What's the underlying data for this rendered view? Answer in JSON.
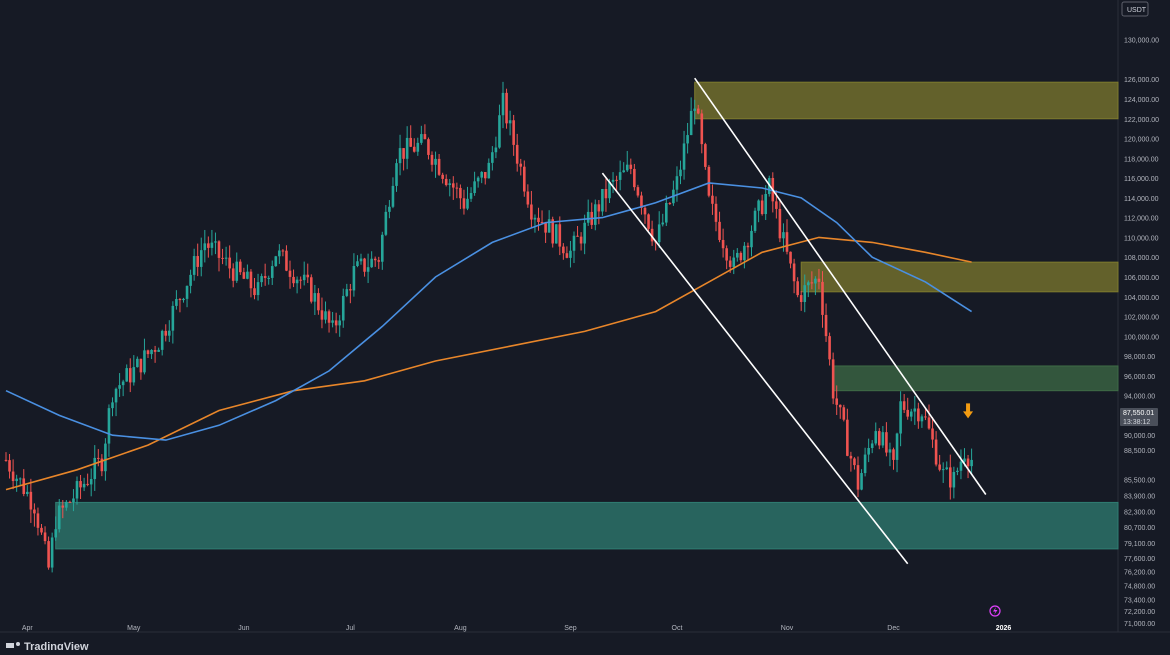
{
  "header": {
    "currency": "USDT"
  },
  "footer": {
    "brand": "TradingView",
    "year_label": "2026"
  },
  "colors": {
    "background": "#161a25",
    "up_candle": "#26a69a",
    "down_candle": "#ef5350",
    "ma_fast": "#4a90e2",
    "ma_slow": "#e8862a",
    "resistance_zone": "#7d7a2e",
    "green_zone": "#3e6b46",
    "support_zone": "#2f7d72",
    "trendline": "#ffffff",
    "arrow": "#f39c12",
    "price_label_bg": "#4a4f5a"
  },
  "icons": {
    "arrow": "down-arrow-icon",
    "logo": "tradingview-logo-icon",
    "replay": "lightning-icon"
  },
  "chart_data": {
    "type": "candlestick",
    "ylim": [
      70500,
      133000
    ],
    "y_ticks": [
      {
        "value": 130000,
        "label": "130,000.00"
      },
      {
        "value": 126000,
        "label": "126,000.00"
      },
      {
        "value": 124000,
        "label": "124,000.00"
      },
      {
        "value": 122000,
        "label": "122,000.00"
      },
      {
        "value": 120000,
        "label": "120,000.00"
      },
      {
        "value": 118000,
        "label": "118,000.00"
      },
      {
        "value": 116000,
        "label": "116,000.00"
      },
      {
        "value": 114000,
        "label": "114,000.00"
      },
      {
        "value": 112000,
        "label": "112,000.00"
      },
      {
        "value": 110000,
        "label": "110,000.00"
      },
      {
        "value": 108000,
        "label": "108,000.00"
      },
      {
        "value": 106000,
        "label": "106,000.00"
      },
      {
        "value": 104000,
        "label": "104,000.00"
      },
      {
        "value": 102000,
        "label": "102,000.00"
      },
      {
        "value": 100000,
        "label": "100,000.00"
      },
      {
        "value": 98000,
        "label": "98,000.00"
      },
      {
        "value": 96000,
        "label": "96,000.00"
      },
      {
        "value": 94000,
        "label": "94,000.00"
      },
      {
        "value": 92000,
        "label": "92,000.00"
      },
      {
        "value": 90000,
        "label": "90,000.00"
      },
      {
        "value": 88500,
        "label": "88,500.00"
      },
      {
        "value": 85500,
        "label": "85,500.00"
      },
      {
        "value": 83900,
        "label": "83,900.00"
      },
      {
        "value": 82300,
        "label": "82,300.00"
      },
      {
        "value": 80700,
        "label": "80,700.00"
      },
      {
        "value": 79100,
        "label": "79,100.00"
      },
      {
        "value": 77600,
        "label": "77,600.00"
      },
      {
        "value": 76200,
        "label": "76,200.00"
      },
      {
        "value": 74800,
        "label": "74,800.00"
      },
      {
        "value": 73400,
        "label": "73,400.00"
      },
      {
        "value": 72200,
        "label": "72,200.00"
      },
      {
        "value": 71000,
        "label": "71,000.00"
      }
    ],
    "x_labels": [
      "Apr",
      "May",
      "Jun",
      "Jul",
      "Aug",
      "Sep",
      "Oct",
      "Nov",
      "Dec",
      "2026"
    ],
    "x_label_dates": [
      "2025-04-01",
      "2025-05-01",
      "2025-06-01",
      "2025-07-01",
      "2025-08-01",
      "2025-09-01",
      "2025-10-01",
      "2025-11-01",
      "2025-12-01",
      "2026-01-01"
    ],
    "current_price": {
      "value": 87550.01,
      "label": "87,550.01",
      "countdown": "13:38:12"
    },
    "key_points": [
      {
        "date": "2025-03-26",
        "close": 87500
      },
      {
        "date": "2025-04-03",
        "close": 83000
      },
      {
        "date": "2025-04-07",
        "close": 76500
      },
      {
        "date": "2025-04-09",
        "close": 81500
      },
      {
        "date": "2025-04-22",
        "close": 87500
      },
      {
        "date": "2025-04-25",
        "close": 94500
      },
      {
        "date": "2025-05-01",
        "close": 96500
      },
      {
        "date": "2025-05-08",
        "close": 99500
      },
      {
        "date": "2025-05-14",
        "close": 104000
      },
      {
        "date": "2025-05-21",
        "close": 109500
      },
      {
        "date": "2025-05-28",
        "close": 107000
      },
      {
        "date": "2025-06-05",
        "close": 104500
      },
      {
        "date": "2025-06-10",
        "close": 108500
      },
      {
        "date": "2025-06-20",
        "close": 104500
      },
      {
        "date": "2025-06-26",
        "close": 100500
      },
      {
        "date": "2025-07-02",
        "close": 106500
      },
      {
        "date": "2025-07-09",
        "close": 108000
      },
      {
        "date": "2025-07-14",
        "close": 118500
      },
      {
        "date": "2025-07-22",
        "close": 119500
      },
      {
        "date": "2025-08-02",
        "close": 113500
      },
      {
        "date": "2025-08-09",
        "close": 117000
      },
      {
        "date": "2025-08-13",
        "close": 123500
      },
      {
        "date": "2025-08-21",
        "close": 113000
      },
      {
        "date": "2025-09-01",
        "close": 108500
      },
      {
        "date": "2025-09-12",
        "close": 115000
      },
      {
        "date": "2025-09-18",
        "close": 117000
      },
      {
        "date": "2025-09-25",
        "close": 109500
      },
      {
        "date": "2025-10-01",
        "close": 115500
      },
      {
        "date": "2025-10-06",
        "close": 124000
      },
      {
        "date": "2025-10-10",
        "close": 113500
      },
      {
        "date": "2025-10-17",
        "close": 107000
      },
      {
        "date": "2025-10-27",
        "close": 115000
      },
      {
        "date": "2025-11-04",
        "close": 104000
      },
      {
        "date": "2025-11-10",
        "close": 106000
      },
      {
        "date": "2025-11-14",
        "close": 94500
      },
      {
        "date": "2025-11-21",
        "close": 85000
      },
      {
        "date": "2025-11-26",
        "close": 91000
      },
      {
        "date": "2025-12-01",
        "close": 86500
      },
      {
        "date": "2025-12-03",
        "close": 93000
      },
      {
        "date": "2025-12-09",
        "close": 92500
      },
      {
        "date": "2025-12-15",
        "close": 86000
      },
      {
        "date": "2025-12-18",
        "close": 85500
      },
      {
        "date": "2025-12-21",
        "close": 88500
      },
      {
        "date": "2025-12-23",
        "close": 87550
      }
    ],
    "ma_fast": [
      {
        "date": "2025-03-26",
        "value": 94500
      },
      {
        "date": "2025-04-10",
        "value": 92000
      },
      {
        "date": "2025-04-25",
        "value": 90000
      },
      {
        "date": "2025-05-10",
        "value": 89500
      },
      {
        "date": "2025-05-25",
        "value": 91000
      },
      {
        "date": "2025-06-10",
        "value": 93500
      },
      {
        "date": "2025-06-25",
        "value": 96500
      },
      {
        "date": "2025-07-10",
        "value": 101000
      },
      {
        "date": "2025-07-25",
        "value": 106000
      },
      {
        "date": "2025-08-10",
        "value": 109500
      },
      {
        "date": "2025-08-25",
        "value": 111500
      },
      {
        "date": "2025-09-10",
        "value": 112000
      },
      {
        "date": "2025-09-25",
        "value": 113500
      },
      {
        "date": "2025-10-10",
        "value": 115500
      },
      {
        "date": "2025-10-25",
        "value": 115000
      },
      {
        "date": "2025-11-05",
        "value": 114000
      },
      {
        "date": "2025-11-15",
        "value": 111500
      },
      {
        "date": "2025-11-25",
        "value": 108000
      },
      {
        "date": "2025-12-10",
        "value": 105500
      },
      {
        "date": "2025-12-23",
        "value": 102500
      }
    ],
    "ma_slow": [
      {
        "date": "2025-03-26",
        "value": 84500
      },
      {
        "date": "2025-04-15",
        "value": 86500
      },
      {
        "date": "2025-05-05",
        "value": 89000
      },
      {
        "date": "2025-05-25",
        "value": 92500
      },
      {
        "date": "2025-06-15",
        "value": 94500
      },
      {
        "date": "2025-07-05",
        "value": 95500
      },
      {
        "date": "2025-07-25",
        "value": 97500
      },
      {
        "date": "2025-08-15",
        "value": 99000
      },
      {
        "date": "2025-09-05",
        "value": 100500
      },
      {
        "date": "2025-09-25",
        "value": 102500
      },
      {
        "date": "2025-10-10",
        "value": 105500
      },
      {
        "date": "2025-10-25",
        "value": 108500
      },
      {
        "date": "2025-11-10",
        "value": 110000
      },
      {
        "date": "2025-11-25",
        "value": 109500
      },
      {
        "date": "2025-12-10",
        "value": 108500
      },
      {
        "date": "2025-12-23",
        "value": 107500
      }
    ],
    "zones": [
      {
        "name": "resistance-zone-upper",
        "from_date": "2025-10-06",
        "to_date": "2026-02-06",
        "low": 122000,
        "high": 125700
      },
      {
        "name": "resistance-zone-middle",
        "from_date": "2025-11-05",
        "to_date": "2026-02-06",
        "low": 104500,
        "high": 107500
      },
      {
        "name": "resistance-zone-lower",
        "from_date": "2025-11-14",
        "to_date": "2026-02-06",
        "low": 94500,
        "high": 97000
      },
      {
        "name": "support-zone",
        "from_date": "2025-04-09",
        "to_date": "2026-02-06",
        "low": 78500,
        "high": 83200
      }
    ],
    "trendlines": [
      {
        "name": "upper-trendline",
        "from": {
          "date": "2025-10-06",
          "price": 126100
        },
        "to": {
          "date": "2025-12-27",
          "price": 84000
        }
      },
      {
        "name": "lower-trendline",
        "from": {
          "date": "2025-09-10",
          "price": 116500
        },
        "to": {
          "date": "2025-12-05",
          "price": 77000
        }
      }
    ],
    "arrow_marker": {
      "date": "2025-12-22",
      "price": 91800
    }
  }
}
